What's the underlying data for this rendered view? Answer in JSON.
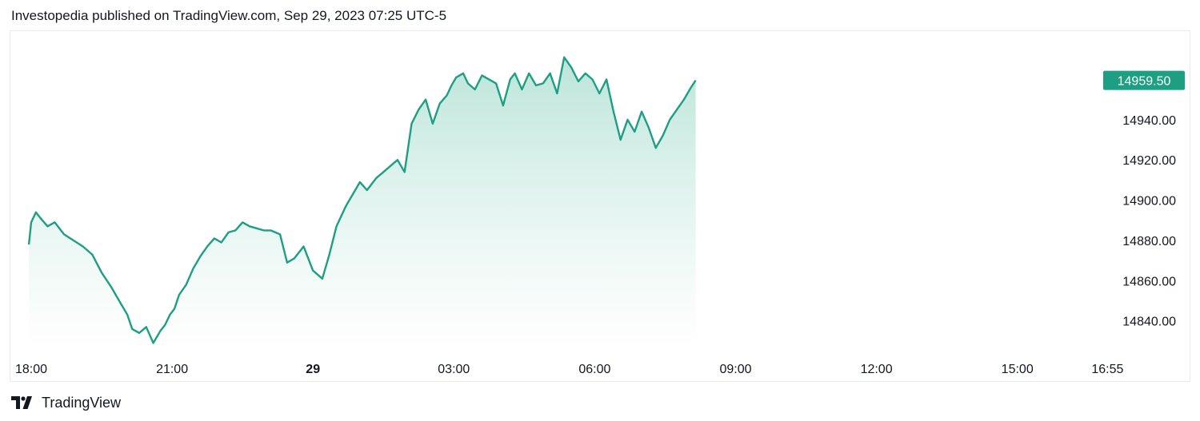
{
  "header": {
    "text": "Investopedia published on TradingView.com, Sep 29, 2023 07:25 UTC-5"
  },
  "footer": {
    "brand": "TradingView"
  },
  "colors": {
    "line": "#1e9e83",
    "area_top": "#b7e3d7",
    "price_tag_bg": "#1e9e83",
    "price_tag_text": "#ffffff",
    "text": "#131722",
    "border": "#e9ecef"
  },
  "chart_data": {
    "type": "area",
    "title": "",
    "xlabel": "",
    "ylabel": "",
    "grid": false,
    "last_price": "14959.50",
    "ylim": [
      14826,
      14980
    ],
    "y_ticks": [
      "14940.00",
      "14920.00",
      "14900.00",
      "14880.00",
      "14860.00",
      "14840.00"
    ],
    "x_ticks": [
      {
        "label": "18:00",
        "hour": 0,
        "bold": false
      },
      {
        "label": "21:00",
        "hour": 3,
        "bold": false
      },
      {
        "label": "29",
        "hour": 6,
        "bold": true
      },
      {
        "label": "03:00",
        "hour": 9,
        "bold": false
      },
      {
        "label": "06:00",
        "hour": 12,
        "bold": false
      },
      {
        "label": "09:00",
        "hour": 15,
        "bold": false
      },
      {
        "label": "12:00",
        "hour": 18,
        "bold": false
      },
      {
        "label": "15:00",
        "hour": 21,
        "bold": false
      },
      {
        "label": "16:55",
        "hour": 22.92,
        "bold": false
      }
    ],
    "series": [
      {
        "x": [
          -0.05,
          0.0,
          0.1,
          0.2,
          0.35,
          0.5,
          0.7,
          0.9,
          1.1,
          1.3,
          1.5,
          1.7,
          1.9,
          2.05,
          2.15,
          2.3,
          2.45,
          2.6,
          2.75,
          2.85,
          2.95,
          3.05,
          3.15,
          3.3,
          3.45,
          3.6,
          3.75,
          3.9,
          4.05,
          4.2,
          4.35,
          4.5,
          4.65,
          4.8,
          4.95,
          5.1,
          5.3,
          5.45,
          5.6,
          5.8,
          6.0,
          6.2,
          6.35,
          6.5,
          6.7,
          6.85,
          7.0,
          7.15,
          7.35,
          7.5,
          7.65,
          7.8,
          7.95,
          8.1,
          8.25,
          8.4,
          8.55,
          8.7,
          8.85,
          8.95,
          9.05,
          9.2,
          9.3,
          9.45,
          9.6,
          9.75,
          9.9,
          10.05,
          10.2,
          10.3,
          10.45,
          10.6,
          10.75,
          10.9,
          11.05,
          11.2,
          11.35,
          11.5,
          11.65,
          11.8,
          11.95,
          12.1,
          12.25,
          12.4,
          12.55,
          12.7,
          12.85,
          13.0,
          13.15,
          13.3,
          13.45,
          13.6,
          13.75,
          13.9,
          14.05,
          14.15
        ],
        "y": [
          14878,
          14889,
          14894,
          14891,
          14887,
          14889,
          14883,
          14880,
          14877,
          14873,
          14864,
          14857,
          14849,
          14843,
          14836,
          14834,
          14837,
          14829,
          14835,
          14838,
          14843,
          14846,
          14853,
          14858,
          14866,
          14872,
          14877,
          14881,
          14879,
          14884,
          14885,
          14889,
          14887,
          14886,
          14885,
          14885,
          14883,
          14869,
          14871,
          14877,
          14865,
          14861,
          14873,
          14887,
          14897,
          14903,
          14909,
          14905,
          14911,
          14914,
          14917,
          14920,
          14914,
          14938,
          14945,
          14950,
          14938,
          14948,
          14952,
          14957,
          14961,
          14963,
          14958,
          14955,
          14962,
          14960,
          14958,
          14947,
          14960,
          14963,
          14955,
          14963,
          14957,
          14958,
          14963,
          14953,
          14971,
          14966,
          14959,
          14963,
          14960,
          14953,
          14960,
          14944,
          14930,
          14940,
          14934,
          14944,
          14936,
          14926,
          14932,
          14940,
          14945,
          14950,
          14956,
          14959.5
        ]
      }
    ]
  }
}
